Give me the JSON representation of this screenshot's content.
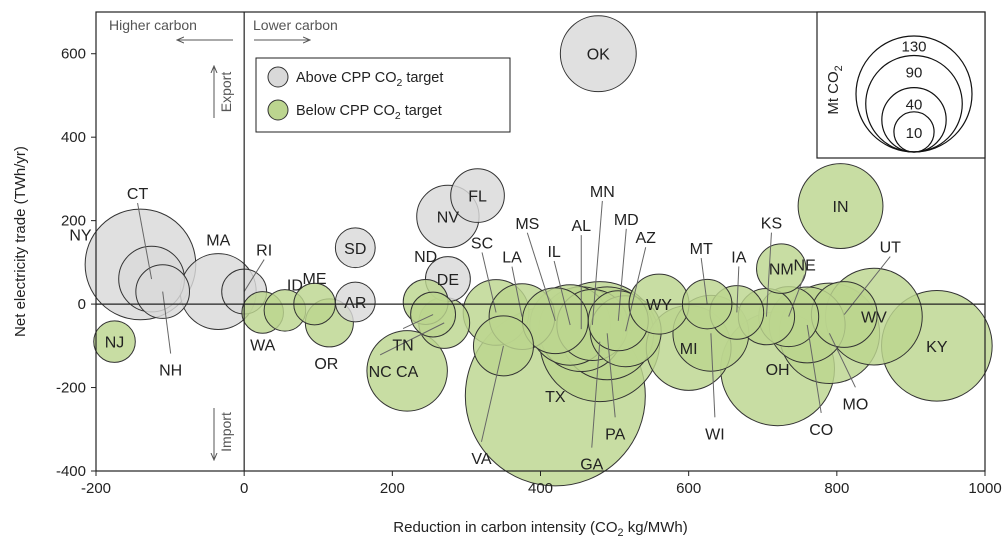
{
  "chart_data": {
    "type": "scatter",
    "xlabel": "Reduction in carbon intensity (CO<sub>2</sub> kg/MWh)",
    "xlabel_main": "Reduction in carbon intensity (CO",
    "xlabel_sub": "2",
    "xlabel_tail": " kg/MWh)",
    "ylabel": "Net electricity trade (TWh/yr)",
    "xlim": [
      -200,
      1000
    ],
    "ylim": [
      -400,
      700
    ],
    "xticks": [
      -200,
      0,
      200,
      400,
      600,
      800,
      1000
    ],
    "yticks": [
      -400,
      -200,
      0,
      200,
      400,
      600
    ],
    "annotations": {
      "higher_carbon": "Higher carbon",
      "lower_carbon": "Lower carbon",
      "export": "Export",
      "import": "Import"
    },
    "legend": {
      "above_main": "Above CPP CO",
      "above_sub": "2",
      "above_tail": " target",
      "below_main": "Below CPP CO",
      "below_sub": "2",
      "below_tail": " target"
    },
    "size_legend": {
      "title_main": "Mt CO",
      "title_sub": "2",
      "values": [
        130,
        90,
        40,
        10
      ]
    },
    "colors": {
      "above": "#d9d9d9",
      "below": "#bcd58f",
      "edge": "#333333"
    },
    "points": [
      {
        "label": "OK",
        "x": 478,
        "y": 600,
        "size": 40,
        "group": "above"
      },
      {
        "label": "NY",
        "x": -140,
        "y": 95,
        "size": 85,
        "group": "above"
      },
      {
        "label": "CT",
        "x": -125,
        "y": 60,
        "size": 30,
        "group": "above"
      },
      {
        "label": "NH",
        "x": -110,
        "y": 30,
        "size": 20,
        "group": "above"
      },
      {
        "label": "MA",
        "x": -35,
        "y": 30,
        "size": 40,
        "group": "above"
      },
      {
        "label": "RI",
        "x": 0,
        "y": 30,
        "size": 14,
        "group": "above"
      },
      {
        "label": "SD",
        "x": 150,
        "y": 135,
        "size": 11,
        "group": "above"
      },
      {
        "label": "AR",
        "x": 150,
        "y": 5,
        "size": 11,
        "group": "above"
      },
      {
        "label": "NV",
        "x": 275,
        "y": 210,
        "size": 27,
        "group": "above"
      },
      {
        "label": "FL",
        "x": 315,
        "y": 260,
        "size": 20,
        "group": "above"
      },
      {
        "label": "DE",
        "x": 275,
        "y": 60,
        "size": 14,
        "group": "above"
      },
      {
        "label": "NJ",
        "x": -175,
        "y": -90,
        "size": 12,
        "group": "below"
      },
      {
        "label": "WA",
        "x": 25,
        "y": -20,
        "size": 12,
        "group": "below"
      },
      {
        "label": "ID",
        "x": 55,
        "y": -15,
        "size": 12,
        "group": "below"
      },
      {
        "label": "ME",
        "x": 95,
        "y": 0,
        "size": 12,
        "group": "below"
      },
      {
        "label": "OR",
        "x": 115,
        "y": -45,
        "size": 16,
        "group": "below"
      },
      {
        "label": "ND",
        "x": 245,
        "y": 5,
        "size": 14,
        "group": "below"
      },
      {
        "label": "TN",
        "x": 255,
        "y": -25,
        "size": 14,
        "group": "below"
      },
      {
        "label": "NC",
        "x": 270,
        "y": -45,
        "size": 18,
        "group": "below"
      },
      {
        "label": "CA",
        "x": 220,
        "y": -160,
        "size": 45,
        "group": "below"
      },
      {
        "label": "SC",
        "x": 340,
        "y": -20,
        "size": 30,
        "group": "below"
      },
      {
        "label": "VA",
        "x": 350,
        "y": -100,
        "size": 25,
        "group": "below"
      },
      {
        "label": "LA",
        "x": 375,
        "y": -30,
        "size": 30,
        "group": "below"
      },
      {
        "label": "TX",
        "x": 420,
        "y": -220,
        "size": 225,
        "group": "below"
      },
      {
        "label": "MS",
        "x": 420,
        "y": -40,
        "size": 30,
        "group": "below"
      },
      {
        "label": "IL",
        "x": 440,
        "y": -50,
        "size": 45,
        "group": "below"
      },
      {
        "label": "AL",
        "x": 455,
        "y": -60,
        "size": 50,
        "group": "below"
      },
      {
        "label": "MN",
        "x": 470,
        "y": -50,
        "size": 35,
        "group": "below"
      },
      {
        "label": "GA",
        "x": 480,
        "y": -90,
        "size": 100,
        "group": "below"
      },
      {
        "label": "PA",
        "x": 490,
        "y": -70,
        "size": 60,
        "group": "below"
      },
      {
        "label": "MD",
        "x": 505,
        "y": -40,
        "size": 25,
        "group": "below"
      },
      {
        "label": "AZ",
        "x": 515,
        "y": -65,
        "size": 35,
        "group": "below"
      },
      {
        "label": "WY",
        "x": 560,
        "y": 0,
        "size": 25,
        "group": "below"
      },
      {
        "label": "MI",
        "x": 600,
        "y": -105,
        "size": 50,
        "group": "below"
      },
      {
        "label": "MT",
        "x": 625,
        "y": 0,
        "size": 17,
        "group": "below"
      },
      {
        "label": "WI",
        "x": 630,
        "y": -70,
        "size": 40,
        "group": "below"
      },
      {
        "label": "IA",
        "x": 665,
        "y": -20,
        "size": 20,
        "group": "below"
      },
      {
        "label": "KS",
        "x": 705,
        "y": -30,
        "size": 22,
        "group": "below"
      },
      {
        "label": "OH",
        "x": 720,
        "y": -155,
        "size": 90,
        "group": "below"
      },
      {
        "label": "NM",
        "x": 725,
        "y": 85,
        "size": 17,
        "group": "below"
      },
      {
        "label": "NE",
        "x": 735,
        "y": -30,
        "size": 25,
        "group": "below"
      },
      {
        "label": "CO",
        "x": 760,
        "y": -50,
        "size": 40,
        "group": "below"
      },
      {
        "label": "MO",
        "x": 790,
        "y": -70,
        "size": 70,
        "group": "below"
      },
      {
        "label": "IN",
        "x": 805,
        "y": 235,
        "size": 50,
        "group": "below"
      },
      {
        "label": "UT",
        "x": 810,
        "y": -25,
        "size": 30,
        "group": "below"
      },
      {
        "label": "WV",
        "x": 850,
        "y": -30,
        "size": 65,
        "group": "below"
      },
      {
        "label": "KY",
        "x": 935,
        "y": -100,
        "size": 85,
        "group": "below"
      }
    ]
  }
}
